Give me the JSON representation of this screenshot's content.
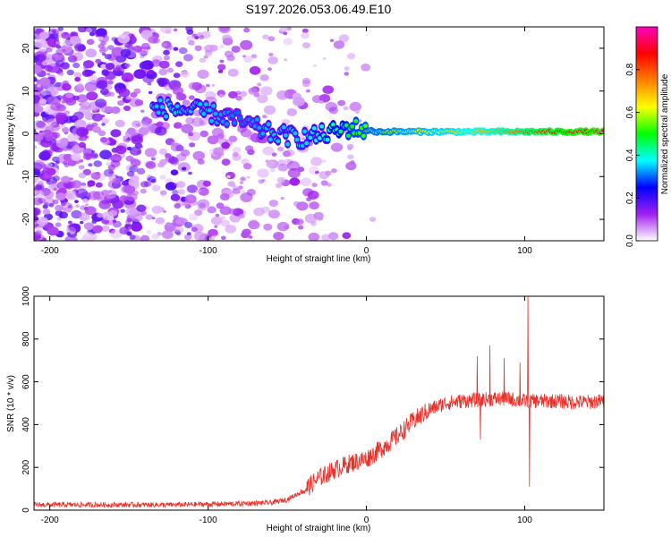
{
  "chart_data": [
    {
      "type": "heatmap",
      "title": "S197.2026.053.06.49.E10",
      "xlabel": "Height of straight line (km)",
      "ylabel": "Frequency (Hz)",
      "xlim": [
        -210,
        150
      ],
      "ylim": [
        -25,
        25
      ],
      "xticks": [
        -200,
        -100,
        0,
        100
      ],
      "xtick_labels": [
        "-200",
        "-100",
        "0",
        "100"
      ],
      "yticks": [
        -20,
        -10,
        0,
        10,
        20
      ],
      "ytick_labels": [
        "-20",
        "-10",
        "0",
        "10",
        "20"
      ],
      "colorbar": {
        "label": "Normalized spectral amplitude",
        "range": [
          0,
          1
        ],
        "ticks": [
          0.0,
          0.2,
          0.4,
          0.6,
          0.8
        ],
        "tick_labels": [
          "0.0",
          "0.2",
          "0.4",
          "0.6",
          "0.8"
        ],
        "colors": [
          "#ffffff",
          "#a020f0",
          "#0000ff",
          "#00ffff",
          "#00ff00",
          "#ffff00",
          "#ff7f00",
          "#ff0000",
          "#ff00c0"
        ]
      },
      "description_points": {
        "noise_region_x": [
          -210,
          -40
        ],
        "trace": [
          {
            "x": -125,
            "f": 6,
            "amp": 0.35
          },
          {
            "x": -100,
            "f": 5,
            "amp": 0.35
          },
          {
            "x": -80,
            "f": 3,
            "amp": 0.3
          },
          {
            "x": -60,
            "f": 0,
            "amp": 0.35
          },
          {
            "x": -40,
            "f": -1,
            "amp": 0.35
          },
          {
            "x": -25,
            "f": 0,
            "amp": 0.4
          },
          {
            "x": -10,
            "f": 1.5,
            "amp": 0.5
          },
          {
            "x": 5,
            "f": 0.5,
            "amp": 0.55
          },
          {
            "x": 25,
            "f": 0.5,
            "amp": 0.6
          },
          {
            "x": 50,
            "f": 0.5,
            "amp": 0.65
          },
          {
            "x": 75,
            "f": 0.5,
            "amp": 0.7
          },
          {
            "x": 100,
            "f": 0.5,
            "amp": 0.8
          },
          {
            "x": 125,
            "f": 0.5,
            "amp": 0.9
          },
          {
            "x": 150,
            "f": 0.5,
            "amp": 0.95
          }
        ]
      }
    },
    {
      "type": "line",
      "xlabel": "Height of straight line (km)",
      "ylabel": "SNR (10 * v/v)",
      "xlim": [
        -210,
        150
      ],
      "ylim": [
        0,
        1000
      ],
      "xticks": [
        -200,
        -100,
        0,
        100
      ],
      "xtick_labels": [
        "-200",
        "-100",
        "0",
        "100"
      ],
      "yticks": [
        0,
        200,
        400,
        600,
        800,
        1000
      ],
      "ytick_labels": [
        "0",
        "200",
        "400",
        "600",
        "800",
        "1000"
      ],
      "color": "#e8312a",
      "series": [
        {
          "name": "SNR",
          "x": [
            -210,
            -180,
            -150,
            -120,
            -100,
            -80,
            -60,
            -50,
            -40,
            -30,
            -20,
            -10,
            0,
            10,
            20,
            30,
            40,
            50,
            60,
            70,
            80,
            90,
            100,
            110,
            120,
            130,
            140,
            150
          ],
          "values": [
            25,
            25,
            25,
            25,
            28,
            30,
            35,
            50,
            90,
            150,
            190,
            220,
            240,
            290,
            350,
            420,
            470,
            500,
            510,
            515,
            520,
            520,
            510,
            510,
            510,
            505,
            505,
            510
          ]
        }
      ],
      "spikes": [
        {
          "x": 70,
          "value": 720
        },
        {
          "x": 72,
          "value": 330
        },
        {
          "x": 78,
          "value": 770
        },
        {
          "x": 87,
          "value": 710
        },
        {
          "x": 97,
          "value": 690
        },
        {
          "x": 102,
          "value": 1000
        },
        {
          "x": 103,
          "value": 110
        }
      ]
    }
  ]
}
